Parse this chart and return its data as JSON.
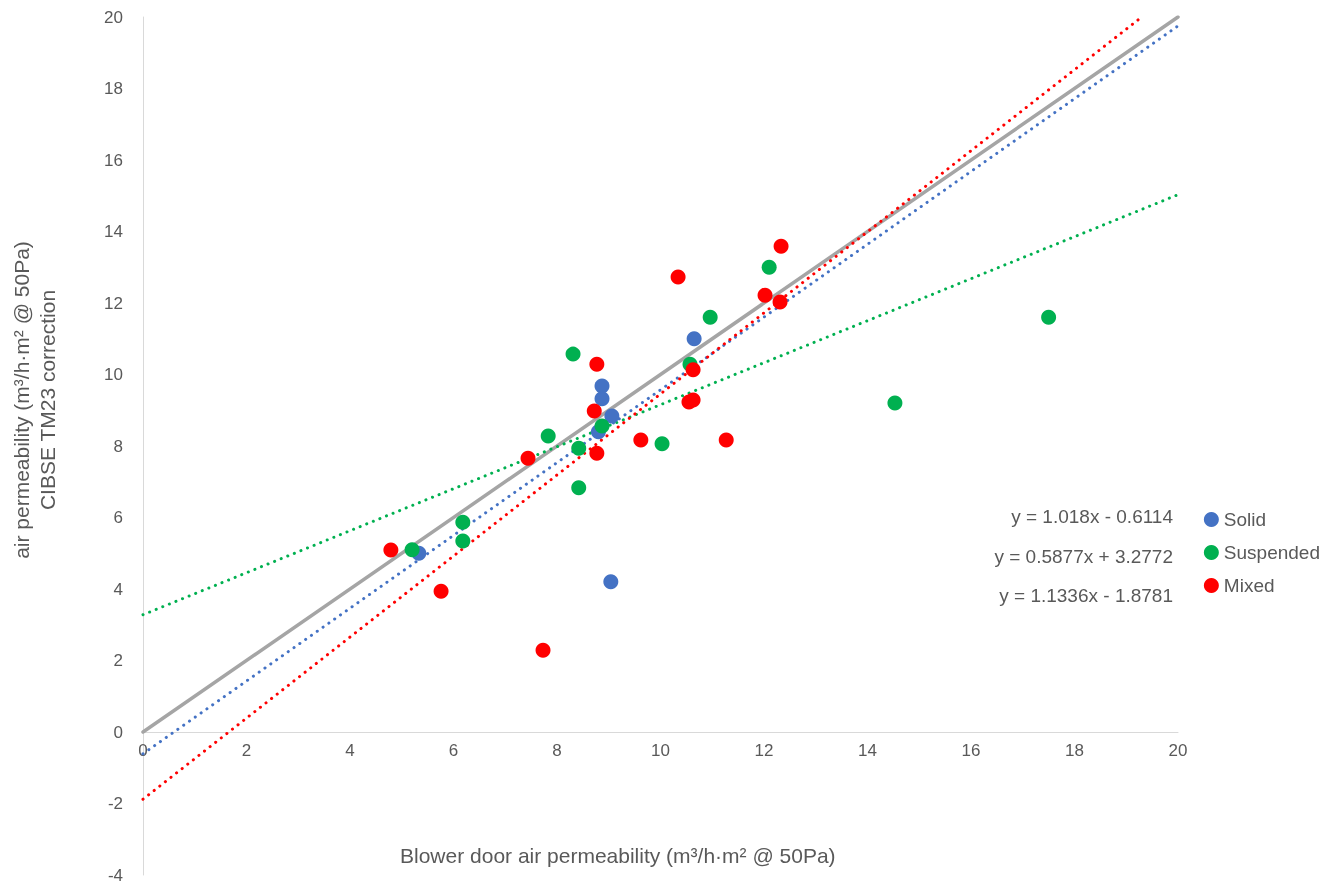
{
  "chart_data": {
    "type": "scatter",
    "xlabel": "Blower door air permeability (m³/h·m² @ 50Pa)",
    "ylabel": "air permeability (m³/h·m² @ 50Pa)\nCIBSE TM23 correction",
    "xlim": [
      0,
      20
    ],
    "xticks": [
      0,
      2,
      4,
      6,
      8,
      10,
      12,
      14,
      16,
      18,
      20
    ],
    "ylim": [
      -4,
      20
    ],
    "yticks": [
      -4,
      -2,
      0,
      2,
      4,
      6,
      8,
      10,
      12,
      14,
      16,
      18,
      20
    ],
    "grid": false,
    "legend": "right",
    "marker": "circle",
    "annotations": [
      "y = 1.018x - 0.6114",
      "y = 0.5877x + 3.2772",
      "y = 1.1336x - 1.8781"
    ],
    "series": [
      {
        "type": "line",
        "color": "#a5a5a5",
        "line_style": "solid",
        "marker": "none",
        "x": [
          0,
          20
        ],
        "values": [
          0,
          20
        ]
      },
      {
        "type": "line",
        "color": "#4472c4",
        "line_style": "dotted",
        "marker": "none",
        "x": [
          0,
          20
        ],
        "values": [
          -0.61,
          19.75
        ]
      },
      {
        "type": "line",
        "color": "#00b050",
        "line_style": "dotted",
        "marker": "none",
        "x": [
          0,
          20
        ],
        "values": [
          3.28,
          15.03
        ]
      },
      {
        "type": "line",
        "color": "#ff0000",
        "line_style": "dotted",
        "marker": "none",
        "x": [
          0,
          19.3
        ],
        "values": [
          -1.88,
          20
        ]
      },
      {
        "name": "Solid",
        "color": "#4472c4",
        "x": [
          5.33,
          9.04,
          10.65,
          8.87,
          8.87,
          9.06,
          8.8
        ],
        "values": [
          5.0,
          4.2,
          11.0,
          9.68,
          9.32,
          8.84,
          8.4
        ]
      },
      {
        "name": "Suspended",
        "color": "#00b050",
        "x": [
          5.2,
          6.18,
          6.18,
          7.83,
          8.31,
          8.42,
          8.42,
          8.87,
          10.03,
          10.57,
          10.96,
          12.1,
          14.53,
          17.5
        ],
        "values": [
          5.1,
          5.87,
          5.34,
          8.28,
          10.57,
          6.83,
          7.94,
          8.56,
          8.06,
          10.29,
          11.6,
          13.0,
          9.2,
          11.6
        ]
      },
      {
        "name": "Mixed",
        "color": "#ff0000",
        "x": [
          4.79,
          5.76,
          7.44,
          7.73,
          8.77,
          8.72,
          8.77,
          9.62,
          10.34,
          11.27,
          10.55,
          10.63,
          10.63,
          12.02,
          12.31,
          12.33
        ],
        "values": [
          5.09,
          3.94,
          7.66,
          2.29,
          10.29,
          8.98,
          7.8,
          8.17,
          12.73,
          8.17,
          9.23,
          9.29,
          10.13,
          12.22,
          12.03,
          13.59
        ]
      }
    ]
  }
}
